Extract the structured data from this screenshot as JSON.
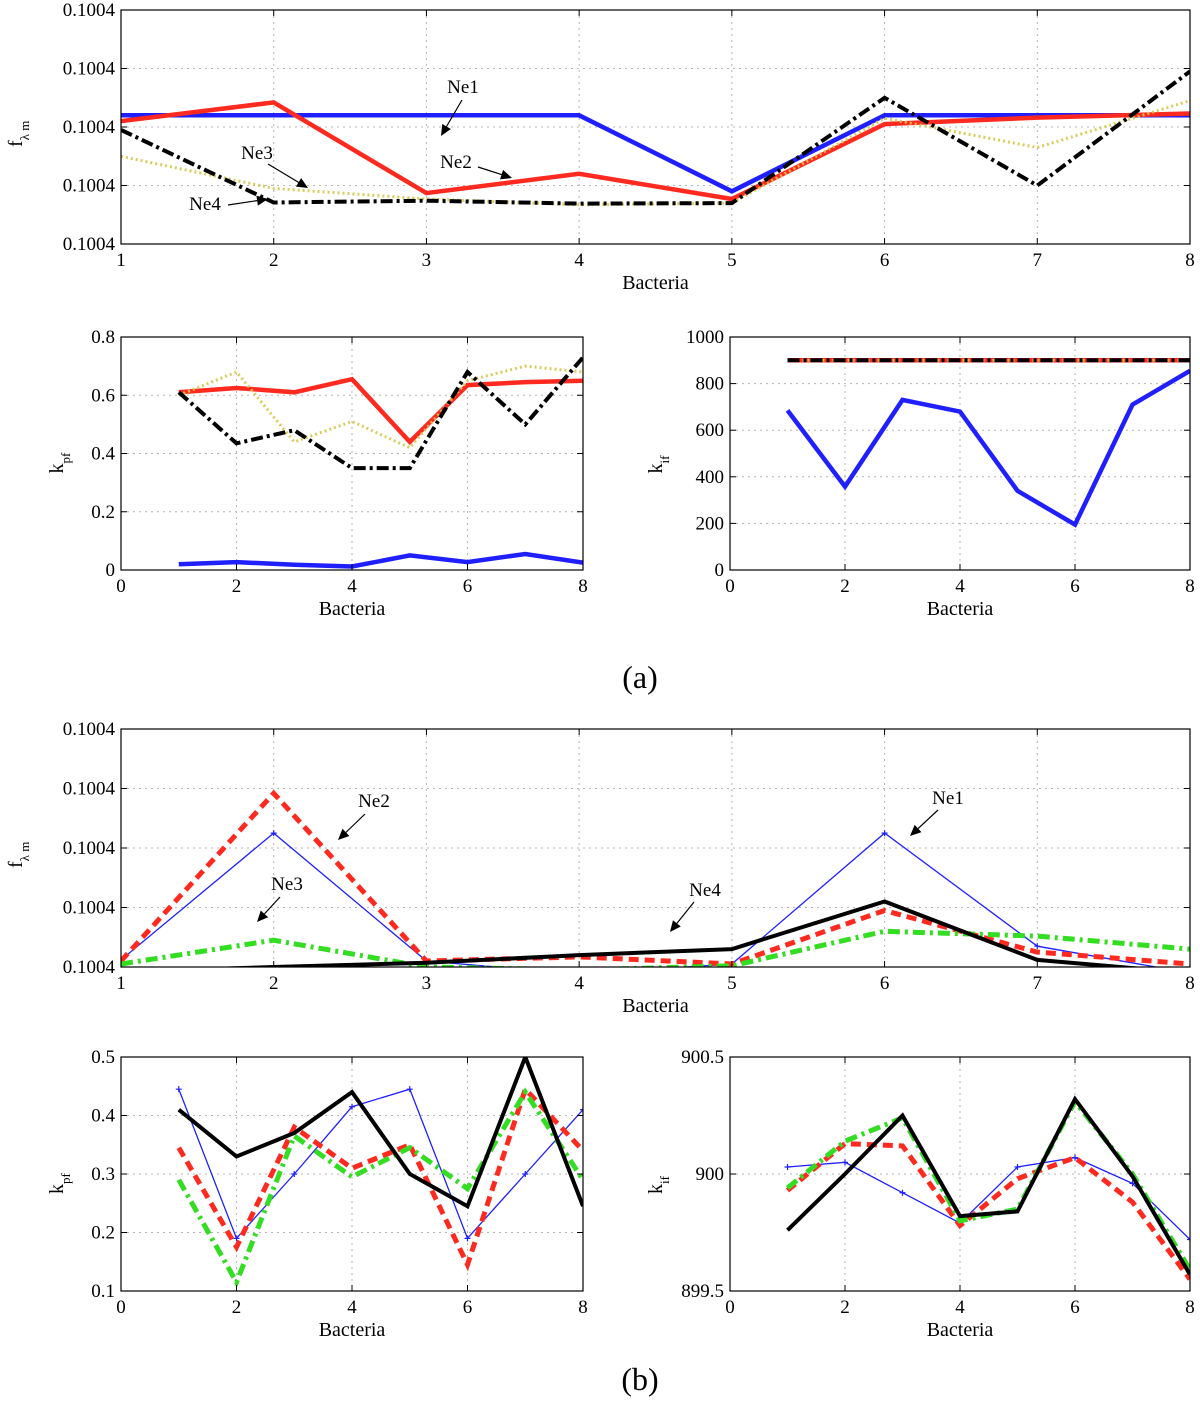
{
  "captions": [
    "(a)",
    "(b)"
  ],
  "chart_data": [
    {
      "panel": "a-top",
      "type": "line",
      "xlabel": "Bacteria",
      "ylabel": "f",
      "ylabel_sub": "λ m",
      "xlim": [
        1,
        8
      ],
      "ylim": [
        0,
        4
      ],
      "xticks": [
        1,
        2,
        3,
        4,
        5,
        6,
        7,
        8
      ],
      "yticks": [
        0,
        1,
        2,
        3,
        4
      ],
      "ytick_labels": [
        "0.1004",
        "0.1004",
        "0.1004",
        "0.1004",
        "0.1004"
      ],
      "grid": true,
      "x": [
        1,
        2,
        3,
        4,
        5,
        6,
        7,
        8
      ],
      "series": [
        {
          "name": "Ne1",
          "color": "#1f1fff",
          "values": [
            2.2,
            2.2,
            2.2,
            2.2,
            0.9,
            2.2,
            2.2,
            2.2
          ]
        },
        {
          "name": "Ne2",
          "color": "#ff2a1f",
          "values": [
            2.1,
            2.42,
            0.87,
            1.2,
            0.77,
            2.05,
            2.16,
            2.23
          ]
        },
        {
          "name": "Ne3",
          "color": "#d4c84a",
          "values": [
            1.5,
            0.95,
            0.77,
            0.67,
            0.7,
            2.15,
            1.65,
            2.45
          ]
        },
        {
          "name": "Ne4",
          "color": "#000000",
          "values": [
            1.95,
            0.71,
            0.74,
            0.69,
            0.7,
            2.5,
            1.0,
            2.95
          ]
        }
      ],
      "annotations": [
        "Ne1",
        "Ne2",
        "Ne3",
        "Ne4"
      ]
    },
    {
      "panel": "a-bottom-left",
      "type": "line",
      "xlabel": "Bacteria",
      "ylabel": "k",
      "ylabel_sub": "pf",
      "xlim": [
        0,
        8
      ],
      "ylim": [
        0,
        0.8
      ],
      "xticks": [
        0,
        2,
        4,
        6,
        8
      ],
      "yticks": [
        0,
        0.2,
        0.4,
        0.6,
        0.8
      ],
      "ytick_labels": [
        "0",
        "0.2",
        "0.4",
        "0.6",
        "0.8"
      ],
      "grid": true,
      "x": [
        1,
        2,
        3,
        4,
        5,
        6,
        7,
        8
      ],
      "series": [
        {
          "name": "Ne1",
          "color": "#1f1fff",
          "values": [
            0.02,
            0.027,
            0.018,
            0.012,
            0.05,
            0.027,
            0.055,
            0.025
          ]
        },
        {
          "name": "Ne2",
          "color": "#ff2a1f",
          "values": [
            0.61,
            0.625,
            0.61,
            0.655,
            0.44,
            0.635,
            0.645,
            0.65
          ]
        },
        {
          "name": "Ne3",
          "color": "#d4c84a",
          "values": [
            0.6,
            0.68,
            0.44,
            0.51,
            0.42,
            0.65,
            0.7,
            0.68
          ]
        },
        {
          "name": "Ne4",
          "color": "#000000",
          "values": [
            0.61,
            0.435,
            0.48,
            0.35,
            0.35,
            0.68,
            0.5,
            0.73
          ]
        }
      ]
    },
    {
      "panel": "a-bottom-right",
      "type": "line",
      "xlabel": "Bacteria",
      "ylabel": "k",
      "ylabel_sub": "if",
      "xlim": [
        0,
        8
      ],
      "ylim": [
        0,
        1000
      ],
      "xticks": [
        0,
        2,
        4,
        6,
        8
      ],
      "yticks": [
        0,
        200,
        400,
        600,
        800,
        1000
      ],
      "ytick_labels": [
        "0",
        "200",
        "400",
        "600",
        "800",
        "1000"
      ],
      "grid": true,
      "x": [
        1,
        2,
        3,
        4,
        5,
        6,
        7,
        8
      ],
      "series": [
        {
          "name": "Ne1",
          "color": "#1f1fff",
          "values": [
            685,
            358,
            730,
            680,
            340,
            195,
            710,
            855
          ]
        },
        {
          "name": "Ne2",
          "color": "#ff2a1f",
          "values": [
            900,
            900,
            900,
            900,
            900,
            900,
            900,
            900
          ]
        },
        {
          "name": "Ne3",
          "color": "#d4c84a",
          "values": [
            900,
            900,
            900,
            900,
            900,
            900,
            900,
            900
          ]
        },
        {
          "name": "Ne4",
          "color": "#000000",
          "values": [
            900,
            900,
            900,
            900,
            900,
            900,
            900,
            900
          ]
        }
      ]
    },
    {
      "panel": "b-top",
      "type": "line",
      "xlabel": "Bacteria",
      "ylabel": "f",
      "ylabel_sub": "λ m",
      "xlim": [
        1,
        8
      ],
      "ylim": [
        0,
        4
      ],
      "xticks": [
        1,
        2,
        3,
        4,
        5,
        6,
        7,
        8
      ],
      "yticks": [
        0,
        1,
        2,
        3,
        4
      ],
      "ytick_labels": [
        "0.1004",
        "0.1004",
        "0.1004",
        "0.1004",
        "0.1004"
      ],
      "grid": true,
      "x": [
        1,
        2,
        3,
        4,
        5,
        6,
        7,
        8
      ],
      "series": [
        {
          "name": "Ne1",
          "color": "#1f1fff",
          "values": [
            0.12,
            2.25,
            0.1,
            -0.12,
            0.05,
            2.25,
            0.35,
            -0.1
          ]
        },
        {
          "name": "Ne2",
          "color": "#ff2a1f",
          "values": [
            0.1,
            2.92,
            0.1,
            0.17,
            0.05,
            0.95,
            0.25,
            0.05
          ]
        },
        {
          "name": "Ne3",
          "color": "#33dd22",
          "values": [
            0.05,
            0.45,
            0.0,
            -0.05,
            0.02,
            0.6,
            0.52,
            0.3
          ]
        },
        {
          "name": "Ne4",
          "color": "#000000",
          "values": [
            -0.08,
            0.0,
            0.07,
            0.2,
            0.3,
            1.1,
            0.12,
            -0.1
          ]
        }
      ],
      "annotations": [
        "Ne1",
        "Ne2",
        "Ne3",
        "Ne4"
      ]
    },
    {
      "panel": "b-bottom-left",
      "type": "line",
      "xlabel": "Bacteria",
      "ylabel": "k",
      "ylabel_sub": "pf",
      "xlim": [
        0,
        8
      ],
      "ylim": [
        0.1,
        0.5
      ],
      "xticks": [
        0,
        2,
        4,
        6,
        8
      ],
      "yticks": [
        0.1,
        0.2,
        0.3,
        0.4,
        0.5
      ],
      "ytick_labels": [
        "0.1",
        "0.2",
        "0.3",
        "0.4",
        "0.5"
      ],
      "grid": true,
      "x": [
        1,
        2,
        3,
        4,
        5,
        6,
        7,
        8
      ],
      "series": [
        {
          "name": "Ne1",
          "color": "#1f1fff",
          "values": [
            0.445,
            0.19,
            0.3,
            0.415,
            0.445,
            0.19,
            0.3,
            0.41
          ]
        },
        {
          "name": "Ne2",
          "color": "#ff2a1f",
          "values": [
            0.345,
            0.175,
            0.38,
            0.31,
            0.35,
            0.145,
            0.445,
            0.34
          ]
        },
        {
          "name": "Ne3",
          "color": "#33dd22",
          "values": [
            0.29,
            0.115,
            0.365,
            0.295,
            0.345,
            0.275,
            0.44,
            0.29
          ]
        },
        {
          "name": "Ne4",
          "color": "#000000",
          "values": [
            0.41,
            0.33,
            0.37,
            0.44,
            0.3,
            0.245,
            0.5,
            0.245
          ]
        }
      ]
    },
    {
      "panel": "b-bottom-right",
      "type": "line",
      "xlabel": "Bacteria",
      "ylabel": "k",
      "ylabel_sub": "if",
      "xlim": [
        0,
        8
      ],
      "ylim": [
        899.5,
        900.5
      ],
      "xticks": [
        0,
        2,
        4,
        6,
        8
      ],
      "yticks": [
        899.5,
        900,
        900.5
      ],
      "ytick_labels": [
        "899.5",
        "900",
        "900.5"
      ],
      "grid": true,
      "x": [
        1,
        2,
        3,
        4,
        5,
        6,
        7,
        8
      ],
      "series": [
        {
          "name": "Ne1",
          "color": "#1f1fff",
          "values": [
            900.03,
            900.05,
            899.92,
            899.79,
            900.03,
            900.07,
            899.96,
            899.72
          ]
        },
        {
          "name": "Ne2",
          "color": "#ff2a1f",
          "values": [
            899.93,
            900.13,
            900.12,
            899.78,
            899.98,
            900.07,
            899.88,
            899.55
          ]
        },
        {
          "name": "Ne3",
          "color": "#33dd22",
          "values": [
            899.94,
            900.14,
            900.24,
            899.8,
            899.85,
            900.31,
            900.0,
            899.59
          ]
        },
        {
          "name": "Ne4",
          "color": "#000000",
          "values": [
            899.76,
            900.0,
            900.25,
            899.82,
            899.84,
            900.32,
            899.99,
            899.57
          ]
        }
      ]
    }
  ]
}
